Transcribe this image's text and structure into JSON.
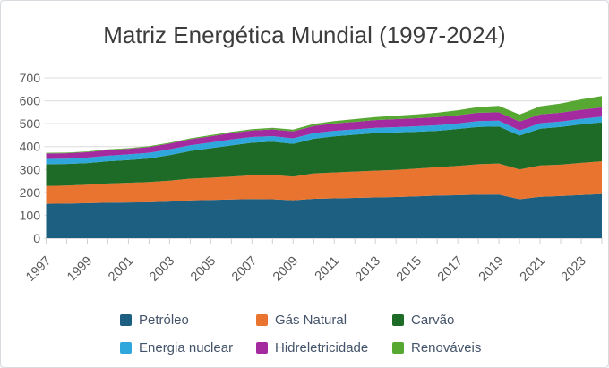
{
  "title": "Matriz Energética Mundial (1997-2024)",
  "chart_data": {
    "type": "area",
    "stacked": true,
    "title": "Matriz Energética Mundial (1997-2024)",
    "xlabel": "",
    "ylabel": "",
    "ylim": [
      0,
      700
    ],
    "yticks": [
      0,
      100,
      200,
      300,
      400,
      500,
      600,
      700
    ],
    "grid": true,
    "legend_position": "bottom",
    "x": [
      1997,
      1998,
      1999,
      2000,
      2001,
      2002,
      2003,
      2004,
      2005,
      2006,
      2007,
      2008,
      2009,
      2010,
      2011,
      2012,
      2013,
      2014,
      2015,
      2016,
      2017,
      2018,
      2019,
      2020,
      2021,
      2022,
      2023,
      2024
    ],
    "xtick_labels": [
      "1997",
      "1999",
      "2001",
      "2003",
      "2005",
      "2007",
      "2009",
      "2011",
      "2013",
      "2015",
      "2017",
      "2019",
      "2021",
      "2023"
    ],
    "series": [
      {
        "name": "Petróleo",
        "color": "#1d5f80",
        "values": [
          150,
          151,
          153,
          155,
          156,
          157,
          160,
          165,
          167,
          169,
          171,
          170,
          166,
          172,
          174,
          176,
          178,
          180,
          183,
          186,
          188,
          190,
          191,
          170,
          181,
          184,
          189,
          193
        ]
      },
      {
        "name": "Gás Natural",
        "color": "#e8742f",
        "values": [
          78,
          79,
          81,
          84,
          86,
          88,
          91,
          95,
          97,
          100,
          104,
          106,
          103,
          111,
          113,
          115,
          117,
          118,
          121,
          124,
          128,
          133,
          135,
          130,
          137,
          137,
          140,
          143
        ]
      },
      {
        "name": "Carvão",
        "color": "#1d6b26",
        "values": [
          95,
          94,
          94,
          97,
          99,
          103,
          112,
          121,
          129,
          136,
          142,
          145,
          143,
          151,
          158,
          161,
          164,
          164,
          161,
          159,
          161,
          163,
          162,
          148,
          160,
          165,
          168,
          170
        ]
      },
      {
        "name": "Energia nuclear",
        "color": "#2fa6dc",
        "values": [
          23,
          23,
          24,
          24,
          25,
          25,
          25,
          25,
          25,
          26,
          25,
          25,
          24,
          25,
          24,
          23,
          23,
          23,
          24,
          24,
          24,
          25,
          25,
          23,
          24,
          23,
          24,
          25
        ]
      },
      {
        "name": "Hidreletricidade",
        "color": "#a42a9f",
        "values": [
          24,
          24,
          24,
          25,
          24,
          25,
          25,
          26,
          27,
          28,
          28,
          29,
          30,
          31,
          32,
          33,
          34,
          35,
          35,
          36,
          36,
          37,
          37,
          38,
          39,
          39,
          40,
          40
        ]
      },
      {
        "name": "Renováveis",
        "color": "#57a733",
        "values": [
          3,
          3,
          3,
          3,
          3,
          4,
          4,
          4,
          5,
          5,
          6,
          7,
          8,
          9,
          10,
          12,
          13,
          15,
          17,
          19,
          22,
          25,
          28,
          31,
          35,
          40,
          45,
          50
        ]
      }
    ]
  },
  "axes": {
    "grid_color": "#dcdcdc",
    "tick_color": "#cfcfcf",
    "label_color": "#595959"
  },
  "card": {
    "background": "#ffffff",
    "border_color": "#d7dbe0"
  }
}
